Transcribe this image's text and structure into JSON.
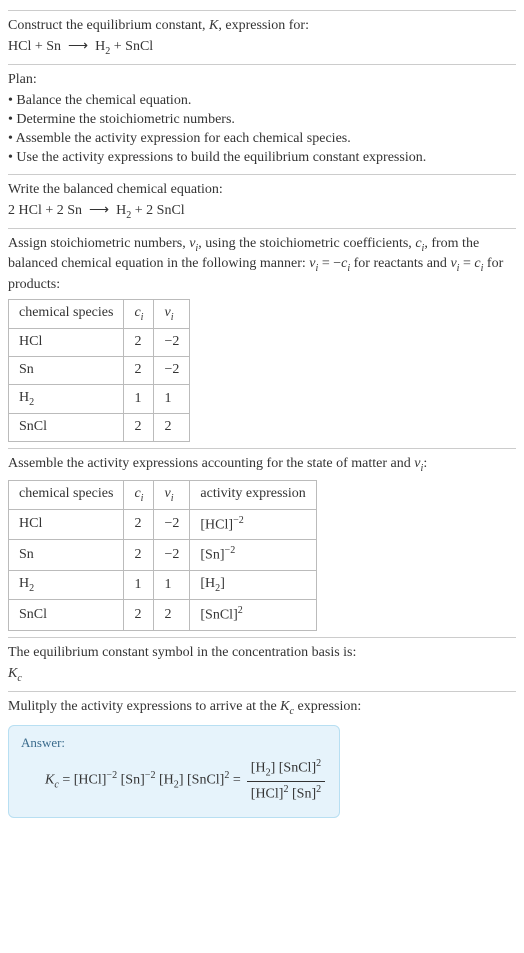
{
  "intro": {
    "line1": "Construct the equilibrium constant, ",
    "Ksym": "K",
    "line1b": ", expression for:",
    "eq_lhs": "HCl + Sn",
    "arrow": "⟶",
    "eq_rhs_a": "H",
    "eq_rhs_b": " + SnCl"
  },
  "plan": {
    "title": "Plan:",
    "items": [
      "Balance the chemical equation.",
      "Determine the stoichiometric numbers.",
      "Assemble the activity expression for each chemical species.",
      "Use the activity expressions to build the equilibrium constant expression."
    ]
  },
  "balanced": {
    "title": "Write the balanced chemical equation:",
    "lhs": "2 HCl + 2 Sn",
    "arrow": "⟶",
    "rhs_a": "H",
    "rhs_b": " + 2 SnCl"
  },
  "assign": {
    "text_a": "Assign stoichiometric numbers, ",
    "nu": "ν",
    "text_b": ", using the stoichiometric coefficients, ",
    "c": "c",
    "text_c": ", from the balanced chemical equation in the following manner: ",
    "rel1a": "ν",
    "rel1b": " = −",
    "rel1c": "c",
    "text_d": " for reactants and ",
    "rel2a": "ν",
    "rel2b": " = ",
    "rel2c": "c",
    "text_e": " for products:"
  },
  "table1": {
    "headers": [
      "chemical species",
      "c_i",
      "ν_i"
    ],
    "rows": [
      {
        "sp_a": "HCl",
        "sp_sub": "",
        "c": "2",
        "nu": "−2"
      },
      {
        "sp_a": "Sn",
        "sp_sub": "",
        "c": "2",
        "nu": "−2"
      },
      {
        "sp_a": "H",
        "sp_sub": "2",
        "c": "1",
        "nu": "1"
      },
      {
        "sp_a": "SnCl",
        "sp_sub": "",
        "c": "2",
        "nu": "2"
      }
    ]
  },
  "assemble": {
    "text_a": "Assemble the activity expressions accounting for the state of matter and ",
    "nu": "ν",
    "text_b": ":"
  },
  "table2": {
    "headers": [
      "chemical species",
      "c_i",
      "ν_i",
      "activity expression"
    ],
    "rows": [
      {
        "sp_a": "HCl",
        "sp_sub": "",
        "c": "2",
        "nu": "−2",
        "act_base": "[HCl]",
        "act_sup": "−2"
      },
      {
        "sp_a": "Sn",
        "sp_sub": "",
        "c": "2",
        "nu": "−2",
        "act_base": "[Sn]",
        "act_sup": "−2"
      },
      {
        "sp_a": "H",
        "sp_sub": "2",
        "c": "1",
        "nu": "1",
        "act_base": "[H",
        "act_sub": "2",
        "act_b": "]",
        "act_sup": ""
      },
      {
        "sp_a": "SnCl",
        "sp_sub": "",
        "c": "2",
        "nu": "2",
        "act_base": "[SnCl]",
        "act_sup": "2"
      }
    ]
  },
  "symbol": {
    "text": "The equilibrium constant symbol in the concentration basis is:",
    "K": "K",
    "c": "c"
  },
  "multiply": {
    "text_a": "Mulitply the activity expressions to arrive at the ",
    "K": "K",
    "c": "c",
    "text_b": " expression:"
  },
  "answer": {
    "label": "Answer:",
    "K": "K",
    "c": "c",
    "eq": " = ",
    "t1": "[HCl]",
    "e1": "−2",
    "t2": " [Sn]",
    "e2": "−2",
    "t3": " [H",
    "s3": "2",
    "t3b": "] [SnCl]",
    "e3": "2",
    "eq2": " = ",
    "num_a": "[H",
    "num_sub": "2",
    "num_b": "] [SnCl]",
    "num_sup": "2",
    "den_a": "[HCl]",
    "den_sup1": "2",
    "den_b": " [Sn]",
    "den_sup2": "2"
  }
}
